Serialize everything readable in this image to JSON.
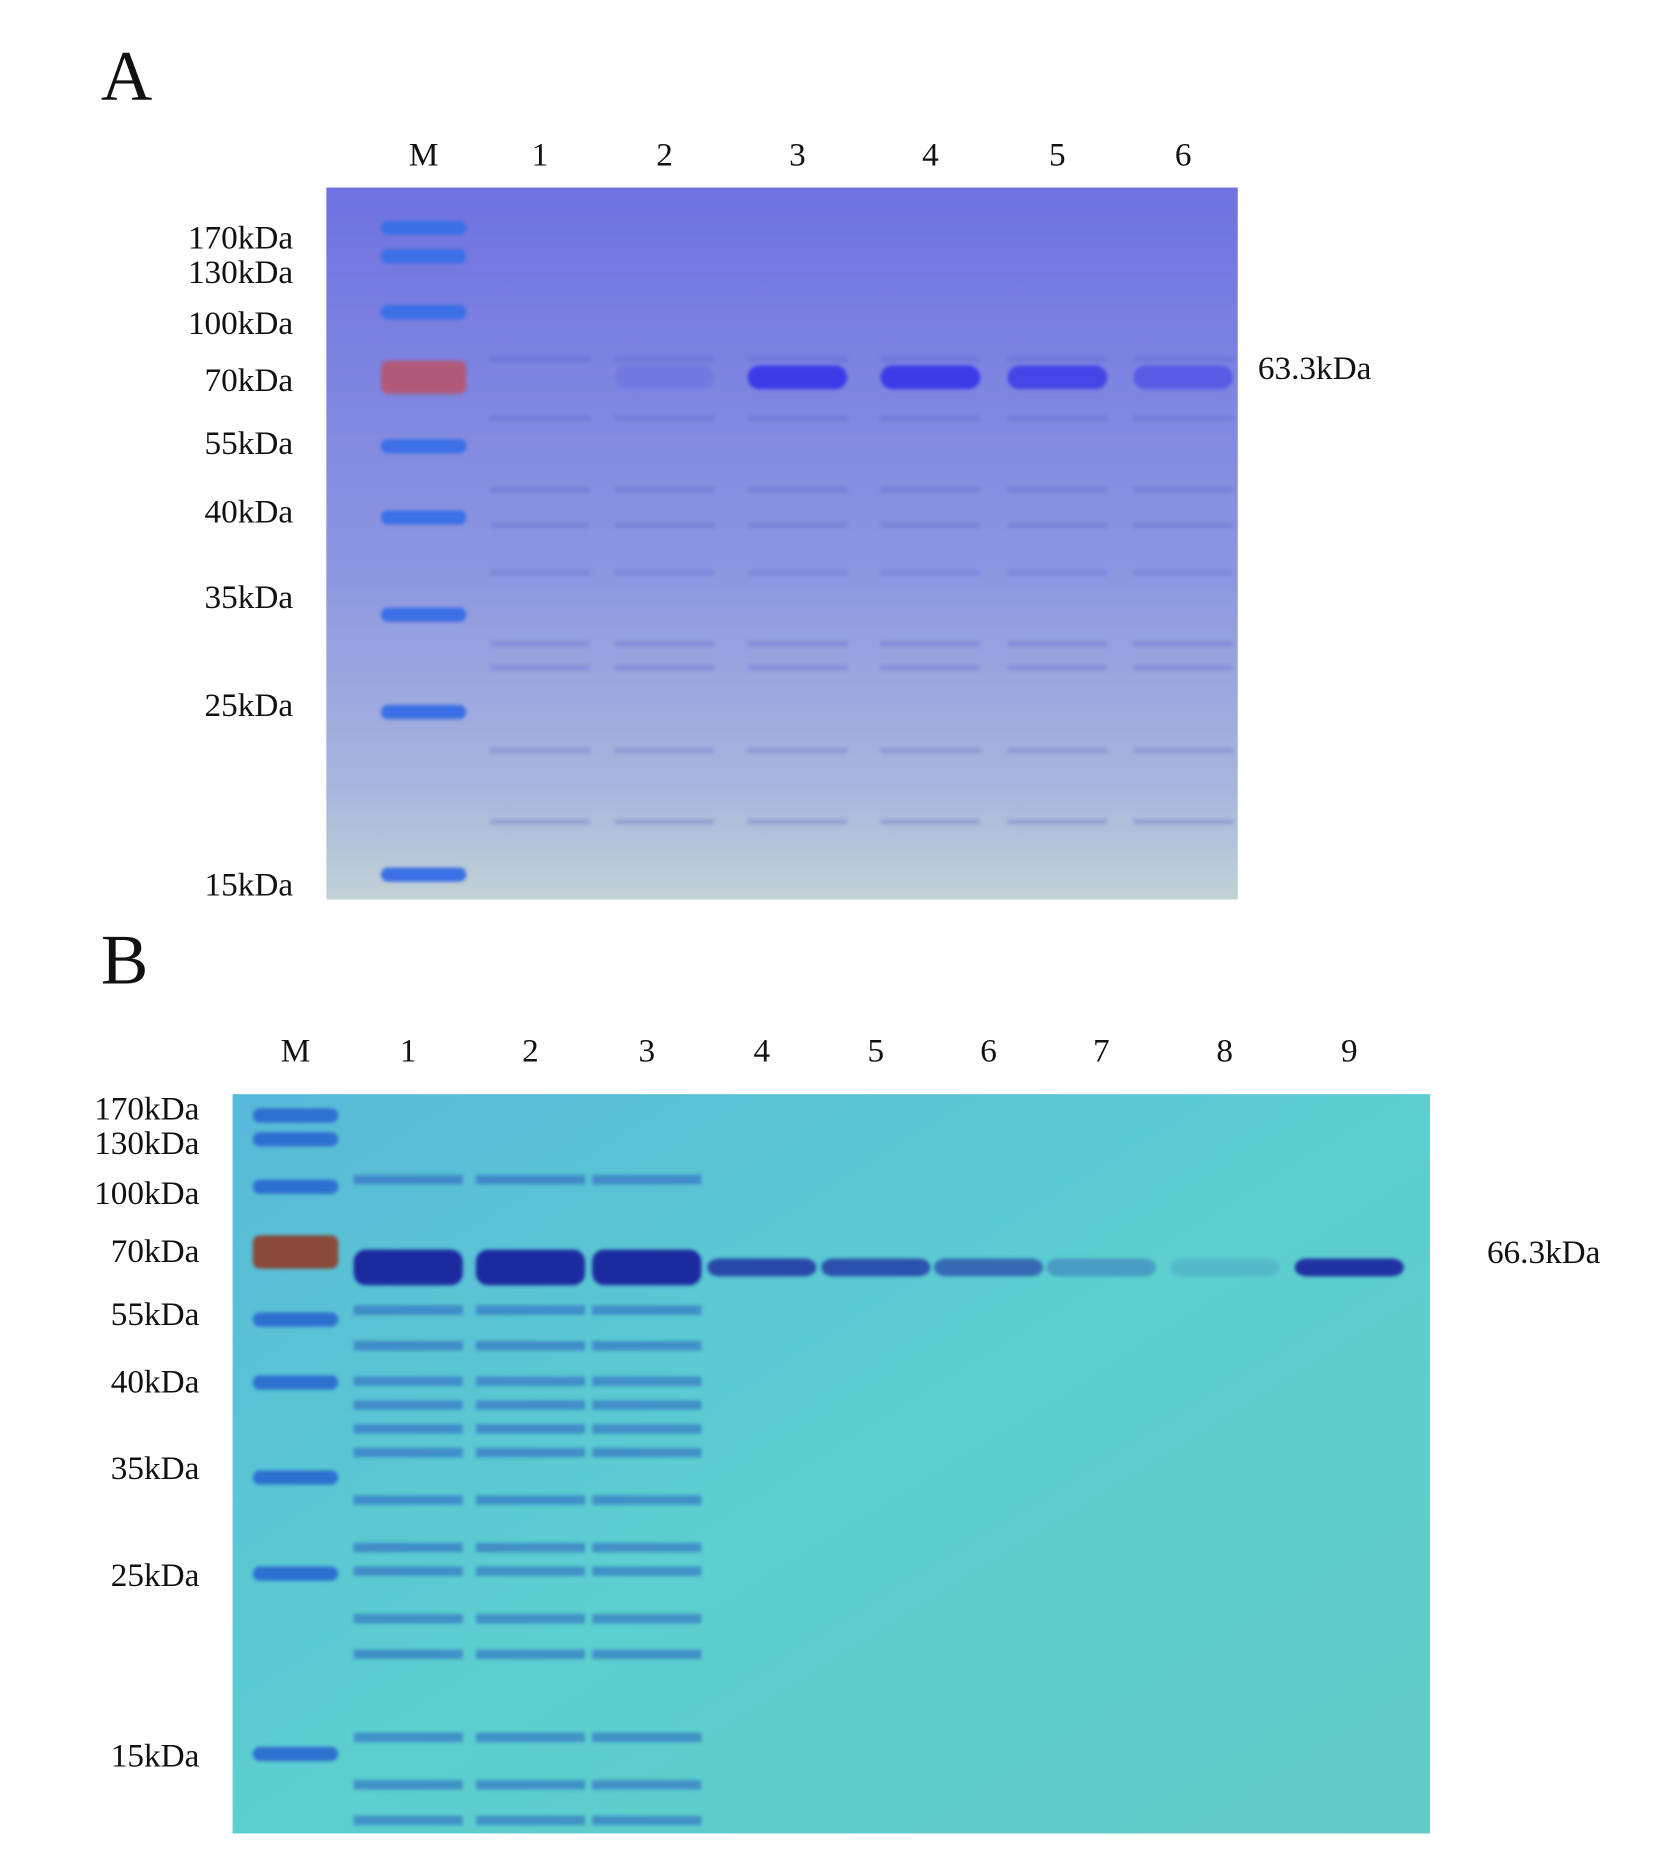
{
  "panels": [
    {
      "label": "A",
      "lanes": [
        "M",
        "1",
        "2",
        "3",
        "4",
        "5",
        "6"
      ],
      "markers": [
        "170kDa",
        "130kDa",
        "100kDa",
        "70kDa",
        "55kDa",
        "40kDa",
        "35kDa",
        "25kDa",
        "15kDa"
      ],
      "band_label": "63.3kDa"
    },
    {
      "label": "B",
      "lanes": [
        "M",
        "1",
        "2",
        "3",
        "4",
        "5",
        "6",
        "7",
        "8",
        "9"
      ],
      "markers": [
        "170kDa",
        "130kDa",
        "100kDa",
        "70kDa",
        "55kDa",
        "40kDa",
        "35kDa",
        "25kDa",
        "15kDa"
      ],
      "band_label": "66.3kDa"
    }
  ]
}
